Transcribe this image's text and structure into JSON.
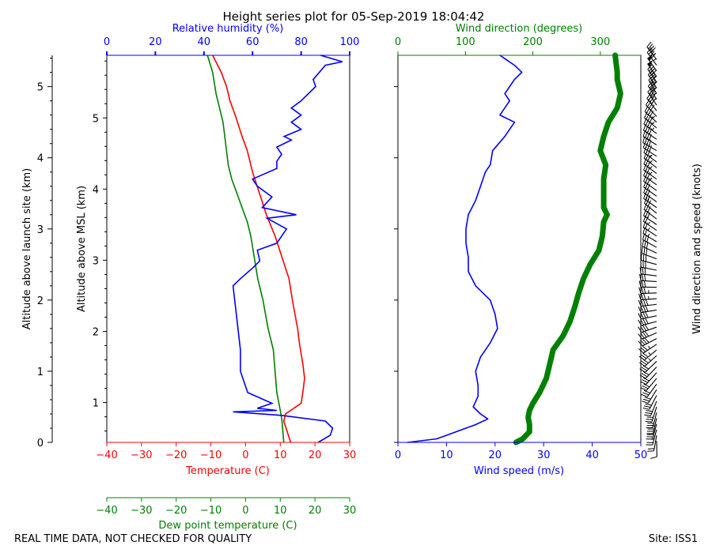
{
  "title": "Height series plot for 05-Sep-2019 18:04:42",
  "footer_left": "REAL TIME DATA, NOT CHECKED FOR QUALITY",
  "footer_right": "Site: ISS1",
  "colors": {
    "temperature": "#ff0000",
    "dewpoint": "#008000",
    "humidity": "#0000ff",
    "wind_speed": "#0000ff",
    "wind_direction": "#008000",
    "barbs": "#000000"
  },
  "chart_data": [
    {
      "type": "line",
      "name": "thermo-panel",
      "left_axis": {
        "label": "Altitude above launch site (km)",
        "range": [
          0,
          5.44
        ],
        "ticks": [
          0,
          1,
          2,
          3,
          4,
          5
        ]
      },
      "msl_axis": {
        "label": "Altitude above MSL (km)",
        "offset": 0.44,
        "ticks": [
          0,
          1,
          2,
          3,
          4,
          5
        ]
      },
      "x_axes": {
        "temperature": {
          "label": "Temperature (C)",
          "range": [
            -40,
            30
          ],
          "ticks": [
            -40,
            -30,
            -20,
            -10,
            0,
            10,
            20,
            30
          ]
        },
        "dewpoint": {
          "label": "Dew point temperature (C)",
          "range": [
            -40,
            30
          ],
          "ticks": [
            -40,
            -30,
            -20,
            -10,
            0,
            10,
            20,
            30
          ]
        },
        "humidity": {
          "label": "Relative humidity (%)",
          "range": [
            0,
            100
          ],
          "ticks": [
            0,
            20,
            40,
            60,
            80,
            100
          ]
        }
      },
      "series": [
        {
          "name": "Temperature",
          "axis": "temperature",
          "points": [
            [
              0.0,
              13.0
            ],
            [
              0.3,
              11.0
            ],
            [
              0.4,
              11.5
            ],
            [
              0.55,
              16.0
            ],
            [
              0.7,
              16.5
            ],
            [
              0.9,
              17.0
            ],
            [
              1.1,
              16.5
            ],
            [
              1.4,
              15.5
            ],
            [
              1.6,
              15.0
            ],
            [
              2.0,
              13.5
            ],
            [
              2.3,
              12.5
            ],
            [
              2.6,
              10.5
            ],
            [
              2.9,
              8.5
            ],
            [
              3.2,
              6.0
            ],
            [
              3.5,
              4.0
            ],
            [
              3.8,
              2.0
            ],
            [
              4.1,
              0.5
            ],
            [
              4.3,
              -1.0
            ],
            [
              4.6,
              -3.0
            ],
            [
              4.8,
              -4.5
            ],
            [
              5.0,
              -5.5
            ],
            [
              5.2,
              -7.0
            ],
            [
              5.44,
              -9.5
            ]
          ]
        },
        {
          "name": "Dew point temperature",
          "axis": "dewpoint",
          "points": [
            [
              0.0,
              11.0
            ],
            [
              0.3,
              10.5
            ],
            [
              0.45,
              10.0
            ],
            [
              0.7,
              9.0
            ],
            [
              1.0,
              8.5
            ],
            [
              1.3,
              8.0
            ],
            [
              1.6,
              6.5
            ],
            [
              2.0,
              5.0
            ],
            [
              2.3,
              3.5
            ],
            [
              2.6,
              2.5
            ],
            [
              2.9,
              1.5
            ],
            [
              3.1,
              0.5
            ],
            [
              3.3,
              -1.0
            ],
            [
              3.5,
              -2.5
            ],
            [
              3.7,
              -4.0
            ],
            [
              3.9,
              -5.0
            ],
            [
              4.1,
              -5.5
            ],
            [
              4.3,
              -6.0
            ],
            [
              4.5,
              -6.5
            ],
            [
              4.7,
              -7.5
            ],
            [
              4.9,
              -8.5
            ],
            [
              5.2,
              -9.5
            ],
            [
              5.44,
              -11.0
            ]
          ]
        },
        {
          "name": "Relative humidity",
          "axis": "humidity",
          "points": [
            [
              0.0,
              87
            ],
            [
              0.1,
              92
            ],
            [
              0.2,
              93
            ],
            [
              0.3,
              90
            ],
            [
              0.38,
              72
            ],
            [
              0.43,
              52
            ],
            [
              0.45,
              70
            ],
            [
              0.48,
              62
            ],
            [
              0.55,
              68
            ],
            [
              0.7,
              58
            ],
            [
              0.8,
              57
            ],
            [
              1.0,
              55
            ],
            [
              1.3,
              55
            ],
            [
              1.6,
              54
            ],
            [
              1.9,
              53
            ],
            [
              2.2,
              52
            ],
            [
              2.3,
              55
            ],
            [
              2.45,
              60
            ],
            [
              2.55,
              63
            ],
            [
              2.7,
              62
            ],
            [
              2.8,
              70
            ],
            [
              3.0,
              74
            ],
            [
              3.15,
              66
            ],
            [
              3.2,
              78
            ],
            [
              3.3,
              64
            ],
            [
              3.45,
              68
            ],
            [
              3.6,
              62
            ],
            [
              3.7,
              60
            ],
            [
              3.85,
              70
            ],
            [
              3.95,
              70
            ],
            [
              4.05,
              72
            ],
            [
              4.15,
              70
            ],
            [
              4.25,
              76
            ],
            [
              4.3,
              73
            ],
            [
              4.4,
              80
            ],
            [
              4.5,
              76
            ],
            [
              4.6,
              80
            ],
            [
              4.7,
              76
            ],
            [
              4.8,
              80
            ],
            [
              5.0,
              86
            ],
            [
              5.1,
              85
            ],
            [
              5.3,
              90
            ],
            [
              5.35,
              97
            ],
            [
              5.44,
              88
            ]
          ]
        }
      ]
    },
    {
      "type": "line",
      "name": "wind-panel",
      "x_axes": {
        "wind_speed": {
          "label": "Wind speed (m/s)",
          "range": [
            0,
            50
          ],
          "ticks": [
            0,
            10,
            20,
            30,
            40,
            50
          ]
        },
        "wind_direction": {
          "label": "Wind direction (degrees)",
          "range": [
            0,
            360
          ],
          "ticks": [
            0,
            100,
            200,
            300
          ]
        }
      },
      "barb_axis_label": "Wind direction and speed (knots)",
      "series": [
        {
          "name": "Wind speed",
          "axis": "wind_speed",
          "points": [
            [
              0.0,
              2
            ],
            [
              0.05,
              8
            ],
            [
              0.15,
              12
            ],
            [
              0.25,
              16
            ],
            [
              0.33,
              18.5
            ],
            [
              0.4,
              17
            ],
            [
              0.5,
              15.5
            ],
            [
              0.65,
              16.5
            ],
            [
              0.8,
              16.5
            ],
            [
              1.0,
              16
            ],
            [
              1.2,
              17
            ],
            [
              1.4,
              19
            ],
            [
              1.6,
              20.5
            ],
            [
              1.8,
              20
            ],
            [
              2.0,
              19
            ],
            [
              2.2,
              16
            ],
            [
              2.4,
              14.5
            ],
            [
              2.6,
              14.5
            ],
            [
              2.8,
              14
            ],
            [
              3.0,
              14
            ],
            [
              3.2,
              14.5
            ],
            [
              3.4,
              16
            ],
            [
              3.6,
              17
            ],
            [
              3.8,
              18
            ],
            [
              3.9,
              19
            ],
            [
              4.1,
              19.5
            ],
            [
              4.3,
              22
            ],
            [
              4.5,
              24
            ],
            [
              4.6,
              21
            ],
            [
              4.8,
              23
            ],
            [
              4.9,
              22
            ],
            [
              5.1,
              24
            ],
            [
              5.2,
              25.5
            ],
            [
              5.3,
              24
            ],
            [
              5.44,
              21
            ]
          ]
        },
        {
          "name": "Wind direction",
          "axis": "wind_direction",
          "points": [
            [
              0.0,
              175
            ],
            [
              0.05,
              185
            ],
            [
              0.15,
              195
            ],
            [
              0.25,
              195
            ],
            [
              0.35,
              193
            ],
            [
              0.45,
              195
            ],
            [
              0.55,
              200
            ],
            [
              0.7,
              210
            ],
            [
              0.9,
              220
            ],
            [
              1.1,
              225
            ],
            [
              1.3,
              230
            ],
            [
              1.5,
              245
            ],
            [
              1.7,
              255
            ],
            [
              1.9,
              262
            ],
            [
              2.1,
              268
            ],
            [
              2.3,
              275
            ],
            [
              2.5,
              285
            ],
            [
              2.7,
              298
            ],
            [
              2.9,
              303
            ],
            [
              3.1,
              305
            ],
            [
              3.2,
              310
            ],
            [
              3.3,
              305
            ],
            [
              3.5,
              305
            ],
            [
              3.7,
              305
            ],
            [
              3.9,
              308
            ],
            [
              4.1,
              300
            ],
            [
              4.3,
              305
            ],
            [
              4.5,
              312
            ],
            [
              4.7,
              325
            ],
            [
              4.9,
              330
            ],
            [
              5.1,
              325
            ],
            [
              5.2,
              325
            ],
            [
              5.44,
              322
            ]
          ]
        }
      ]
    }
  ]
}
